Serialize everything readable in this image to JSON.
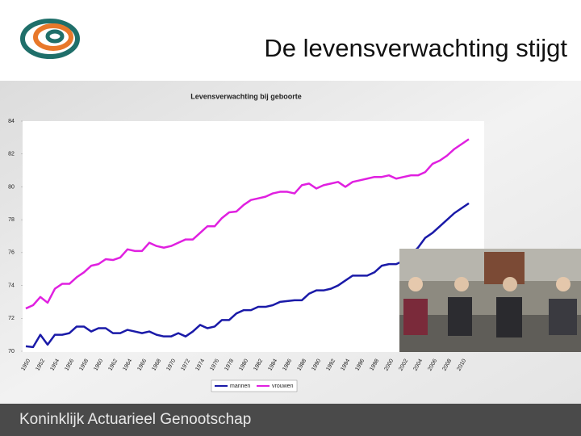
{
  "slide": {
    "title": "De levensverwachting stijgt",
    "footer": "Koninklijk Actuarieel Genootschap"
  },
  "chart_data": {
    "type": "line",
    "title": "Levensverwachting bij geboorte",
    "categories": [
      "1950",
      null,
      "1952",
      null,
      "1954",
      null,
      "1956",
      null,
      "1958",
      null,
      "1960",
      null,
      "1962",
      null,
      "1964",
      null,
      "1966",
      null,
      "1968",
      null,
      "1970",
      null,
      "1972",
      null,
      "1974",
      null,
      "1976",
      null,
      "1978",
      null,
      "1980",
      null,
      "1982",
      null,
      "1984",
      null,
      "1986",
      null,
      "1988",
      null,
      "1990",
      null,
      "1992",
      null,
      "1994",
      null,
      "1996",
      null,
      "1998",
      null,
      "2000",
      null,
      "2002",
      null,
      "2004",
      null,
      "2006",
      null,
      "2008",
      null,
      "2010",
      null
    ],
    "series": [
      {
        "name": "mannen",
        "color": "#1a1aa8",
        "values": [
          70.3,
          70.25,
          71.0,
          70.4,
          71.0,
          71.0,
          71.1,
          71.5,
          71.5,
          71.2,
          71.4,
          71.4,
          71.1,
          71.1,
          71.3,
          71.2,
          71.1,
          71.2,
          71.0,
          70.9,
          70.9,
          71.1,
          70.9,
          71.2,
          71.6,
          71.4,
          71.5,
          71.9,
          71.9,
          72.3,
          72.5,
          72.5,
          72.7,
          72.7,
          72.8,
          73.0,
          73.05,
          73.1,
          73.1,
          73.5,
          73.7,
          73.7,
          73.8,
          74.0,
          74.3,
          74.6,
          74.6,
          74.6,
          74.8,
          75.2,
          75.3,
          75.3,
          75.5,
          75.9,
          76.3,
          76.9,
          77.2,
          77.6,
          78.0,
          78.4,
          78.7,
          79.0
        ]
      },
      {
        "name": "vrouwen",
        "color": "#e020e0",
        "values": [
          72.6,
          72.8,
          73.3,
          72.95,
          73.8,
          74.1,
          74.1,
          74.5,
          74.8,
          75.2,
          75.3,
          75.6,
          75.55,
          75.7,
          76.2,
          76.1,
          76.1,
          76.6,
          76.4,
          76.3,
          76.4,
          76.6,
          76.8,
          76.8,
          77.2,
          77.6,
          77.6,
          78.1,
          78.45,
          78.5,
          78.9,
          79.2,
          79.3,
          79.4,
          79.6,
          79.7,
          79.7,
          79.6,
          80.1,
          80.2,
          79.9,
          80.1,
          80.2,
          80.3,
          80.0,
          80.3,
          80.4,
          80.5,
          80.6,
          80.6,
          80.7,
          80.5,
          80.6,
          80.7,
          80.7,
          80.9,
          81.4,
          81.6,
          81.9,
          82.3,
          82.6,
          82.9
        ]
      }
    ],
    "ylim": [
      70,
      84
    ],
    "yticks": [
      70,
      72,
      74,
      76,
      78,
      80,
      82,
      84
    ],
    "grid": false,
    "legend": "bottom"
  }
}
